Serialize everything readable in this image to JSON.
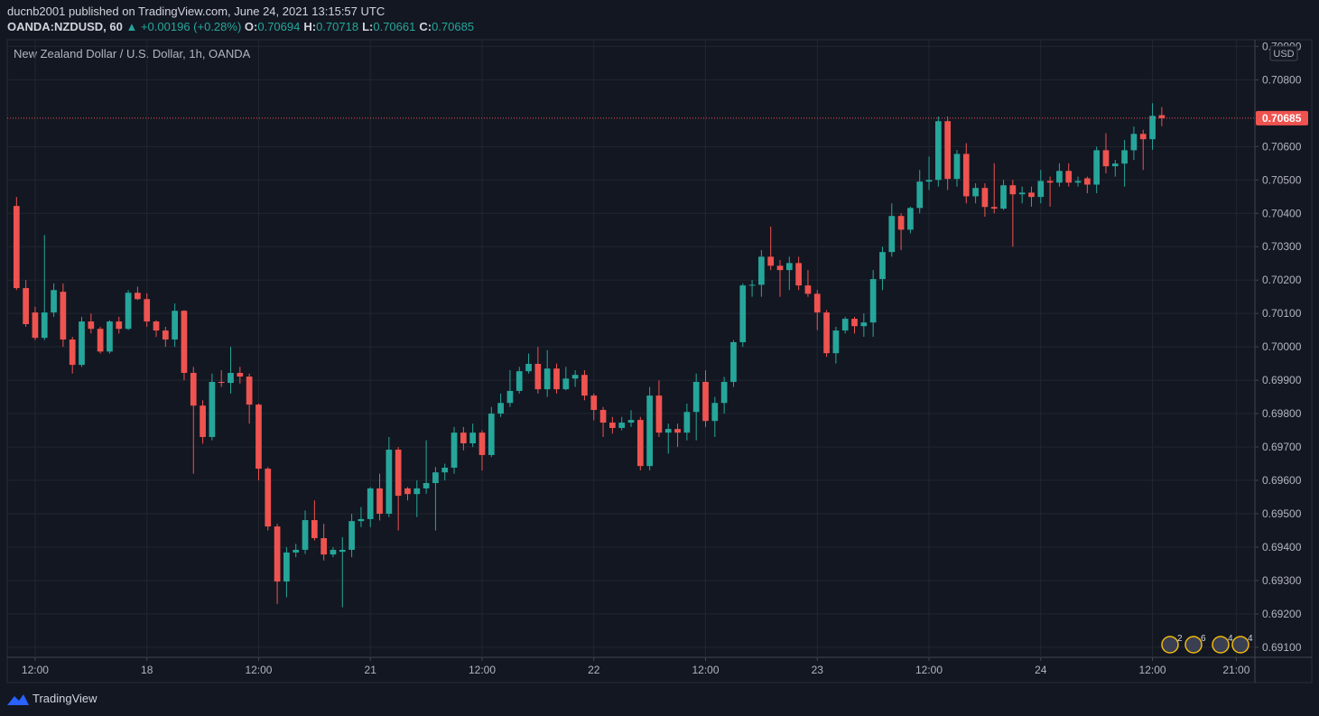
{
  "header": {
    "published": "ducnb2001 published on TradingView.com, June 24, 2021 13:15:57 UTC",
    "symbol": "OANDA:NZDUSD, 60",
    "change": "+0.00196 (+0.28%)",
    "ohlc": [
      {
        "label": "O:",
        "value": "0.70694"
      },
      {
        "label": "H:",
        "value": "0.70718"
      },
      {
        "label": "L:",
        "value": "0.70661"
      },
      {
        "label": "C:",
        "value": "0.70685"
      }
    ]
  },
  "footer": {
    "brand": "TradingView"
  },
  "chart_data": {
    "type": "candlestick",
    "title": "New Zealand Dollar / U.S. Dollar, 1h, OANDA",
    "currency": "USD",
    "up_color": "#26a69a",
    "down_color": "#ef5350",
    "grid": true,
    "ylim": [
      0.6907,
      0.7092
    ],
    "yticks": [
      {
        "value": 0.691,
        "label": "0.69100"
      },
      {
        "value": 0.692,
        "label": "0.69200"
      },
      {
        "value": 0.693,
        "label": "0.69300"
      },
      {
        "value": 0.694,
        "label": "0.69400"
      },
      {
        "value": 0.695,
        "label": "0.69500"
      },
      {
        "value": 0.696,
        "label": "0.69600"
      },
      {
        "value": 0.697,
        "label": "0.69700"
      },
      {
        "value": 0.698,
        "label": "0.69800"
      },
      {
        "value": 0.699,
        "label": "0.69900"
      },
      {
        "value": 0.7,
        "label": "0.70000"
      },
      {
        "value": 0.701,
        "label": "0.70100"
      },
      {
        "value": 0.702,
        "label": "0.70200"
      },
      {
        "value": 0.703,
        "label": "0.70300"
      },
      {
        "value": 0.704,
        "label": "0.70400"
      },
      {
        "value": 0.705,
        "label": "0.70500"
      },
      {
        "value": 0.706,
        "label": "0.70600"
      },
      {
        "value": 0.708,
        "label": "0.70800"
      },
      {
        "value": 0.709,
        "label": "0.70900"
      }
    ],
    "xlim": [
      -1,
      133
    ],
    "xticks": [
      {
        "value": 2,
        "label": "12:00"
      },
      {
        "value": 14,
        "label": "18"
      },
      {
        "value": 26,
        "label": "12:00"
      },
      {
        "value": 38,
        "label": "21"
      },
      {
        "value": 50,
        "label": "12:00"
      },
      {
        "value": 62,
        "label": "22"
      },
      {
        "value": 74,
        "label": "12:00"
      },
      {
        "value": 86,
        "label": "23"
      },
      {
        "value": 98,
        "label": "12:00"
      },
      {
        "value": 110,
        "label": "24"
      },
      {
        "value": 122,
        "label": "12:00"
      },
      {
        "value": 131,
        "label": "21:00"
      }
    ],
    "last_price": 0.70685,
    "events": [
      "2",
      "6",
      "4",
      "4"
    ],
    "open": [
      0.70422,
      0.70176,
      0.70103,
      0.70027,
      0.70103,
      0.70165,
      0.70022,
      0.69946,
      0.70076,
      0.70054,
      0.69986,
      0.70076,
      0.70054,
      0.70162,
      0.70143,
      0.70076,
      0.70049,
      0.70022,
      0.70108,
      0.69922,
      0.69824,
      0.6973,
      0.69895,
      0.69892,
      0.69922,
      0.69911,
      0.69827,
      0.69635,
      0.69462,
      0.69297,
      0.69384,
      0.69392,
      0.69481,
      0.69427,
      0.69378,
      0.69386,
      0.69392,
      0.69478,
      0.69484,
      0.69576,
      0.695,
      0.69692,
      0.69576,
      0.69559,
      0.69576,
      0.69592,
      0.69624,
      0.69638,
      0.69743,
      0.69711,
      0.69743,
      0.69676,
      0.698,
      0.69832,
      0.69868,
      0.69927,
      0.69949,
      0.69873,
      0.69935,
      0.69873,
      0.69905,
      0.69916,
      0.69854,
      0.69811,
      0.69773,
      0.69757,
      0.69773,
      0.69781,
      0.69643,
      0.69854,
      0.69743,
      0.69754,
      0.69743,
      0.69805,
      0.69895,
      0.69778,
      0.69832,
      0.69895,
      0.70014,
      0.70184,
      0.70186,
      0.7027,
      0.70243,
      0.7023,
      0.70251,
      0.70184,
      0.70159,
      0.70103,
      0.69981,
      0.70049,
      0.70084,
      0.70062,
      0.70073,
      0.70203,
      0.70284,
      0.70392,
      0.70351,
      0.70416,
      0.70495,
      0.705,
      0.70676,
      0.70503,
      0.70578,
      0.70451,
      0.70476,
      0.70419,
      0.70414,
      0.70484,
      0.70457,
      0.70462,
      0.70449,
      0.70497,
      0.70492,
      0.70527,
      0.70492,
      0.70505,
      0.70486,
      0.70589,
      0.70541,
      0.70549,
      0.70589,
      0.70638,
      0.70622,
      0.70694
    ],
    "high": [
      0.70449,
      0.702,
      0.7012,
      0.70335,
      0.7019,
      0.7019,
      0.7003,
      0.7009,
      0.701,
      0.7006,
      0.7008,
      0.7009,
      0.7017,
      0.7018,
      0.7016,
      0.7008,
      0.7006,
      0.7013,
      0.7011,
      0.6994,
      0.6984,
      0.6992,
      0.6993,
      0.7,
      0.6994,
      0.6992,
      0.6983,
      0.6964,
      0.6947,
      0.694,
      0.6941,
      0.6951,
      0.6954,
      0.6947,
      0.694,
      0.6943,
      0.695,
      0.6952,
      0.6958,
      0.6962,
      0.6973,
      0.697,
      0.6958,
      0.696,
      0.6972,
      0.6964,
      0.6965,
      0.6976,
      0.6976,
      0.6977,
      0.6975,
      0.6982,
      0.6986,
      0.6993,
      0.6994,
      0.6998,
      0.7,
      0.6999,
      0.6995,
      0.6994,
      0.6993,
      0.6993,
      0.6986,
      0.6982,
      0.6979,
      0.6979,
      0.6981,
      0.6979,
      0.6988,
      0.699,
      0.6977,
      0.6977,
      0.6983,
      0.6992,
      0.6993,
      0.6985,
      0.6991,
      0.7002,
      0.7019,
      0.702,
      0.7029,
      0.7036,
      0.7026,
      0.7027,
      0.7027,
      0.7023,
      0.7017,
      0.7011,
      0.7006,
      0.7009,
      0.7009,
      0.701,
      0.7023,
      0.703,
      0.7043,
      0.704,
      0.7042,
      0.7053,
      0.7057,
      0.7069,
      0.7069,
      0.7059,
      0.7061,
      0.7049,
      0.7049,
      0.7055,
      0.705,
      0.705,
      0.7048,
      0.7048,
      0.7053,
      0.7051,
      0.7055,
      0.7055,
      0.7051,
      0.7051,
      0.706,
      0.7064,
      0.7056,
      0.7062,
      0.7066,
      0.7065,
      0.7073,
      0.70718
    ],
    "low": [
      0.7017,
      0.7006,
      0.7002,
      0.7002,
      0.7009,
      0.7,
      0.6992,
      0.6994,
      0.7004,
      0.6998,
      0.6998,
      0.7004,
      0.7005,
      0.7014,
      0.7006,
      0.7003,
      0.7,
      0.7,
      0.699,
      0.6962,
      0.6971,
      0.6972,
      0.6988,
      0.6986,
      0.6989,
      0.6977,
      0.696,
      0.6945,
      0.6923,
      0.6925,
      0.6937,
      0.6938,
      0.6942,
      0.6936,
      0.6937,
      0.6922,
      0.6937,
      0.6946,
      0.6946,
      0.6948,
      0.6949,
      0.6945,
      0.6954,
      0.6949,
      0.6956,
      0.6945,
      0.696,
      0.6962,
      0.6969,
      0.697,
      0.6963,
      0.6967,
      0.6979,
      0.6982,
      0.6986,
      0.6992,
      0.6986,
      0.6985,
      0.6986,
      0.6987,
      0.6988,
      0.6984,
      0.6978,
      0.6973,
      0.6974,
      0.6975,
      0.6976,
      0.6963,
      0.6963,
      0.6973,
      0.6968,
      0.697,
      0.6972,
      0.6972,
      0.6976,
      0.6973,
      0.698,
      0.6988,
      0.7,
      0.7015,
      0.7015,
      0.7023,
      0.7015,
      0.7017,
      0.7017,
      0.7015,
      0.7005,
      0.6997,
      0.6995,
      0.7004,
      0.7004,
      0.7003,
      0.7003,
      0.7017,
      0.7027,
      0.7029,
      0.7034,
      0.704,
      0.7047,
      0.7048,
      0.7047,
      0.7048,
      0.7043,
      0.7043,
      0.7039,
      0.704,
      0.7041,
      0.703,
      0.7043,
      0.7042,
      0.7043,
      0.7042,
      0.7048,
      0.7048,
      0.7048,
      0.7046,
      0.7046,
      0.7052,
      0.7051,
      0.7048,
      0.7056,
      0.7053,
      0.7059,
      0.70661
    ],
    "close": [
      0.70176,
      0.70068,
      0.70027,
      0.70103,
      0.7017,
      0.70022,
      0.69946,
      0.70076,
      0.70054,
      0.69986,
      0.70076,
      0.70054,
      0.70162,
      0.70143,
      0.70076,
      0.70049,
      0.70022,
      0.70108,
      0.69922,
      0.69824,
      0.6973,
      0.69895,
      0.69892,
      0.69922,
      0.69911,
      0.69827,
      0.69635,
      0.69462,
      0.69297,
      0.69384,
      0.69392,
      0.69481,
      0.69427,
      0.69378,
      0.69392,
      0.69392,
      0.69478,
      0.69484,
      0.69576,
      0.695,
      0.69692,
      0.69554,
      0.69559,
      0.69576,
      0.69592,
      0.69624,
      0.69638,
      0.69743,
      0.69711,
      0.69743,
      0.69676,
      0.698,
      0.69832,
      0.69868,
      0.69927,
      0.69949,
      0.69873,
      0.69935,
      0.69873,
      0.69905,
      0.69916,
      0.69854,
      0.69811,
      0.69773,
      0.69757,
      0.69773,
      0.69781,
      0.69643,
      0.69854,
      0.69743,
      0.69754,
      0.69743,
      0.69805,
      0.69895,
      0.69778,
      0.69832,
      0.69895,
      0.70014,
      0.70184,
      0.70186,
      0.7027,
      0.70243,
      0.7023,
      0.70251,
      0.70184,
      0.70159,
      0.70103,
      0.69981,
      0.70049,
      0.70084,
      0.70062,
      0.70073,
      0.70203,
      0.70284,
      0.70392,
      0.70351,
      0.70416,
      0.70495,
      0.705,
      0.70676,
      0.70503,
      0.70578,
      0.70451,
      0.70476,
      0.70419,
      0.70414,
      0.70484,
      0.70457,
      0.70462,
      0.70449,
      0.70497,
      0.70492,
      0.70527,
      0.70492,
      0.70497,
      0.70486,
      0.70589,
      0.70541,
      0.70549,
      0.70589,
      0.70638,
      0.70622,
      0.70692,
      0.70685
    ]
  }
}
